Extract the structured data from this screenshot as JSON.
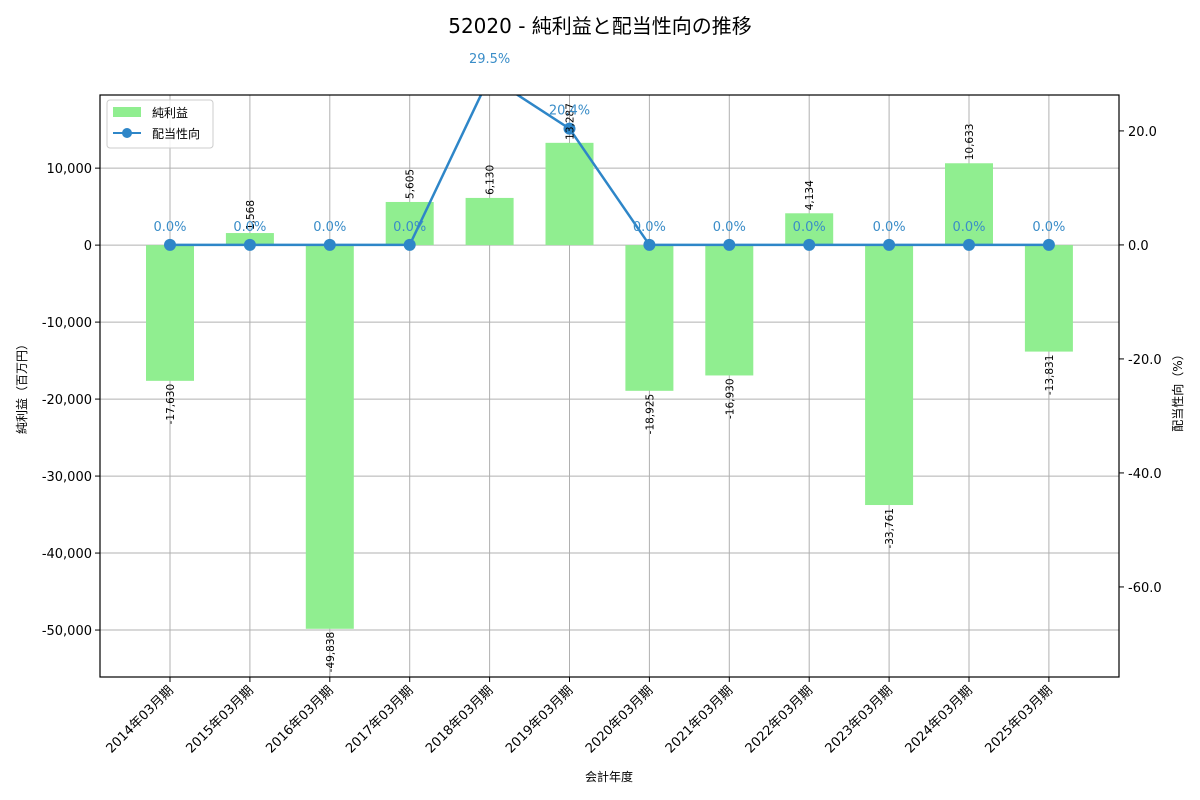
{
  "chart_data": {
    "type": "bar+line",
    "title": "52020 - 純利益と配当性向の推移",
    "xlabel": "会計年度",
    "ylabel": "純利益（百万円）",
    "y2label": "配当性向（%）",
    "categories": [
      "2014年03月期",
      "2015年03月期",
      "2016年03月期",
      "2017年03月期",
      "2018年03月期",
      "2019年03月期",
      "2020年03月期",
      "2021年03月期",
      "2022年03月期",
      "2023年03月期",
      "2024年03月期",
      "2025年03月期"
    ],
    "series": [
      {
        "name": "純利益",
        "type": "bar",
        "axis": "left",
        "color": "#90ee90",
        "values": [
          -17630,
          1568,
          -49838,
          5605,
          6130,
          13287,
          -18925,
          -16930,
          4134,
          -33761,
          10633,
          -13831
        ],
        "labels": [
          "-17,630",
          "1,568",
          "-49,838",
          "5,605",
          "6,130",
          "13,287",
          "-18,925",
          "-16,930",
          "4,134",
          "-33,761",
          "10,633",
          "-13,831"
        ]
      },
      {
        "name": "配当性向",
        "type": "line",
        "axis": "right",
        "color": "#2e86c8",
        "values": [
          0.0,
          0.0,
          0.0,
          0.0,
          29.5,
          20.4,
          0.0,
          0.0,
          0.0,
          0.0,
          0.0,
          0.0
        ],
        "labels": [
          "0.0%",
          "0.0%",
          "0.0%",
          "0.0%",
          "29.5%",
          "20.4%",
          "0.0%",
          "0.0%",
          "0.0%",
          "0.0%",
          "0.0%",
          "0.0%"
        ]
      }
    ],
    "ylim": [
      -56100,
      19500
    ],
    "y2lim": [
      -75.8,
      26.3
    ],
    "yticks": [
      10000,
      0,
      -10000,
      -20000,
      -30000,
      -40000,
      -50000
    ],
    "ytick_labels": [
      "10,000",
      "0",
      "-10,000",
      "-20,000",
      "-30,000",
      "-40,000",
      "-50,000"
    ],
    "y2ticks": [
      20,
      0,
      -20,
      -40,
      -60
    ],
    "y2tick_labels": [
      "20.0",
      "0.0",
      "-20.0",
      "-40.0",
      "-60.0"
    ],
    "grid": true,
    "legend_position": "upper left"
  },
  "legend": {
    "items": [
      {
        "label": "純利益",
        "color": "#90ee90"
      },
      {
        "label": "配当性向",
        "color": "#2e86c8"
      }
    ]
  }
}
